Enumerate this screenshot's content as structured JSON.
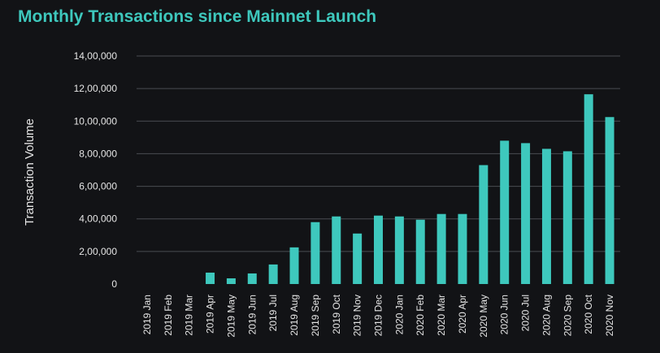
{
  "chart_data": {
    "type": "bar",
    "title": "Monthly Transactions since Mainnet Launch",
    "xlabel": "",
    "ylabel": "Transaction Volume",
    "ylim": [
      0,
      1400000
    ],
    "yticks": [
      0,
      200000,
      400000,
      600000,
      800000,
      1000000,
      1200000,
      1400000
    ],
    "ytick_labels": [
      "0",
      "2,00,000",
      "4,00,000",
      "6,00,000",
      "8,00,000",
      "10,00,000",
      "12,00,000",
      "14,00,000"
    ],
    "grid": true,
    "legend": "none",
    "categories": [
      "2019 Jan",
      "2019 Feb",
      "2019 Mar",
      "2019 Apr",
      "2019 May",
      "2019 Jun",
      "2019 Jul",
      "2019 Aug",
      "2019 Sep",
      "2019 Oct",
      "2019 Nov",
      "2019 Dec",
      "2020 Jan",
      "2020 Feb",
      "2020 Mar",
      "2020 Apr",
      "2020 May",
      "2020 Jun",
      "2020 Jul",
      "2020 Aug",
      "2020 Sep",
      "2020 Oct",
      "2020 Nov"
    ],
    "values": [
      0,
      0,
      0,
      70000,
      35000,
      65000,
      120000,
      225000,
      380000,
      415000,
      310000,
      420000,
      415000,
      395000,
      430000,
      430000,
      730000,
      880000,
      865000,
      830000,
      815000,
      1165000,
      1025000
    ],
    "colors": {
      "bar": "#3ec8bd",
      "title": "#3ec8bd",
      "background": "#121316",
      "grid": "#4a4d52",
      "text": "#e6e6e6"
    }
  }
}
